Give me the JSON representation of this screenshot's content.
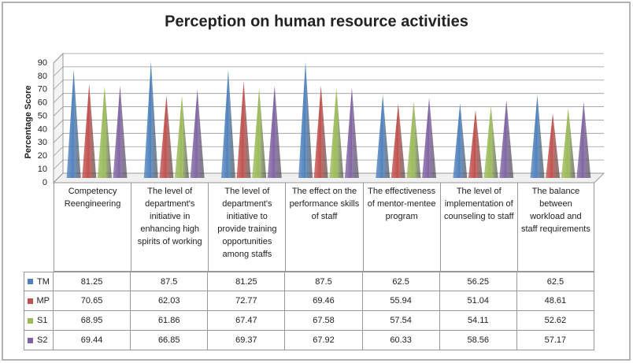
{
  "chart_data": {
    "type": "pyramid3d",
    "title": "Perception on human resource activities",
    "y_label": "Percentage Score",
    "categories": [
      "Competency Reengineering",
      "The level of department's initiative in enhancing high spirits of working",
      "The level of department's initiative to provide training opportunities among staffs",
      "The effect on the performance skills of staff",
      "The effectiveness of mentor-mentee program",
      "The level of implementation of counseling to staff",
      "The balance between workload and staff requirements"
    ],
    "series": [
      {
        "name": "TM",
        "color": "#4f81bd",
        "values": [
          81.25,
          87.5,
          81.25,
          87.5,
          62.5,
          56.25,
          62.5
        ]
      },
      {
        "name": "MP",
        "color": "#c0504d",
        "values": [
          70.65,
          62.03,
          72.77,
          69.46,
          55.94,
          51.04,
          48.61
        ]
      },
      {
        "name": "S1",
        "color": "#9bbb59",
        "values": [
          68.95,
          61.86,
          67.47,
          67.58,
          57.54,
          54.11,
          52.62
        ]
      },
      {
        "name": "S2",
        "color": "#8064a2",
        "values": [
          69.44,
          66.85,
          69.37,
          67.92,
          60.33,
          58.56,
          57.17
        ]
      }
    ],
    "ylim": [
      0,
      90
    ],
    "yticks": [
      0,
      10,
      20,
      30,
      40,
      50,
      60,
      70,
      80,
      90
    ],
    "grid": true
  }
}
